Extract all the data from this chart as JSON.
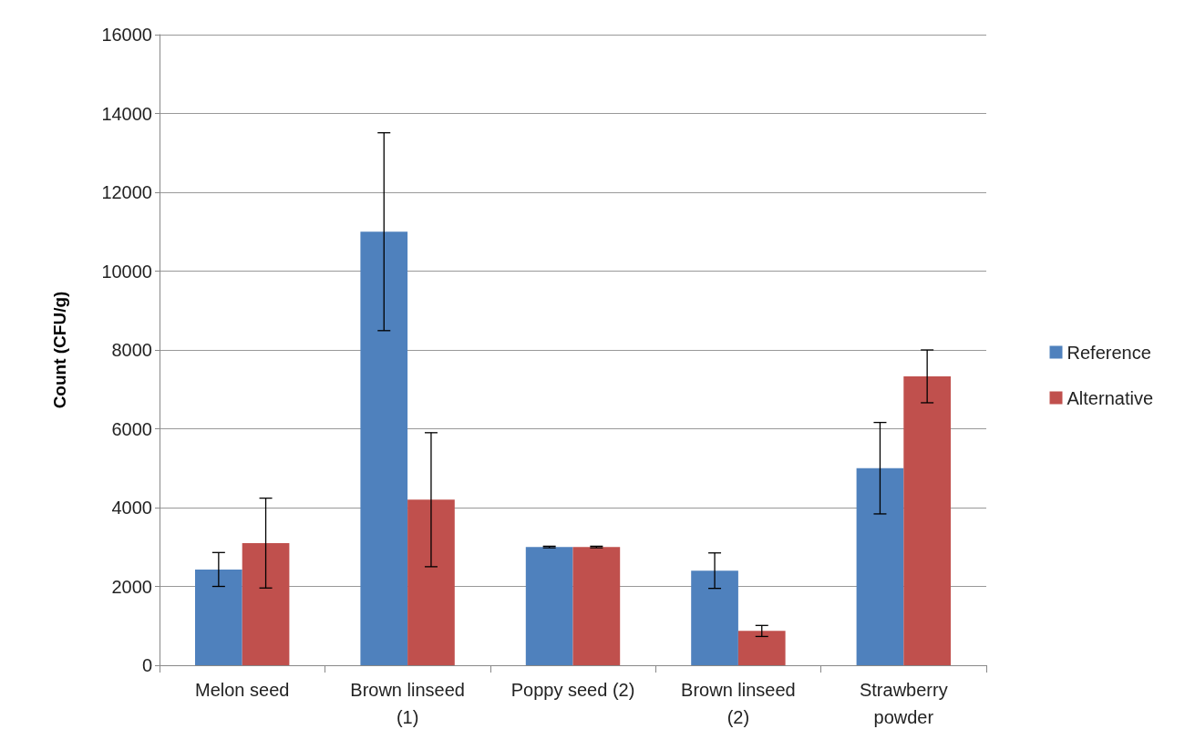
{
  "chart_data": {
    "type": "bar",
    "ylabel": "Count (CFU/g)",
    "categories": [
      "Melon seed",
      "Brown linseed\n(1)",
      "Poppy seed (2)",
      "Brown linseed\n(2)",
      "Strawberry\npowder"
    ],
    "series": [
      {
        "name": "Reference",
        "color": "#4f81bd",
        "values": [
          2430,
          11000,
          3000,
          2400,
          5000
        ],
        "errors": [
          430,
          2510,
          20,
          450,
          1160
        ]
      },
      {
        "name": "Alternative",
        "color": "#c0504d",
        "values": [
          3100,
          4200,
          3000,
          870,
          7330
        ],
        "errors": [
          1140,
          1700,
          20,
          140,
          670
        ]
      }
    ],
    "ylim": [
      0,
      16000
    ],
    "yticks": [
      0,
      2000,
      4000,
      6000,
      8000,
      10000,
      12000,
      14000,
      16000
    ],
    "grid": "y",
    "legend": "right"
  }
}
